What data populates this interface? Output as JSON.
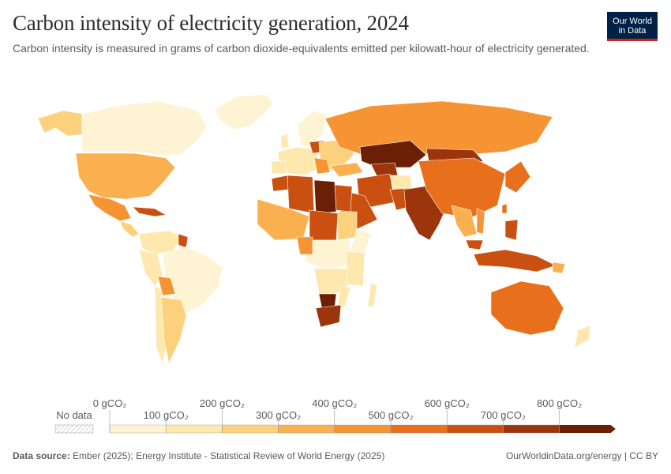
{
  "title": "Carbon intensity of electricity generation, 2024",
  "subtitle": "Carbon intensity is measured in grams of carbon dioxide-equivalents emitted per kilowatt-hour of electricity generated.",
  "logo": {
    "line1": "Our World",
    "line2": "in Data"
  },
  "legend": {
    "no_data_label": "No data",
    "top_ticks": [
      "0 gCO₂",
      "200 gCO₂",
      "400 gCO₂",
      "600 gCO₂",
      "800 gCO₂"
    ],
    "bottom_ticks": [
      "100 gCO₂",
      "300 gCO₂",
      "500 gCO₂",
      "700 gCO₂"
    ],
    "bins": [
      {
        "from": 0,
        "to": 100,
        "color": "#fef3d3"
      },
      {
        "from": 100,
        "to": 200,
        "color": "#fee8ad"
      },
      {
        "from": 200,
        "to": 300,
        "color": "#fcd17e"
      },
      {
        "from": 300,
        "to": 400,
        "color": "#fbb04f"
      },
      {
        "from": 400,
        "to": 500,
        "color": "#f69333"
      },
      {
        "from": 500,
        "to": 600,
        "color": "#e8701d"
      },
      {
        "from": 600,
        "to": 700,
        "color": "#ca5012"
      },
      {
        "from": 700,
        "to": 800,
        "color": "#9c350b"
      },
      {
        "from": 800,
        "to": 900,
        "color": "#6b1f05"
      }
    ]
  },
  "footer": {
    "source_label": "Data source:",
    "source_text": "Ember (2025); Energy Institute - Statistical Review of World Energy (2025)",
    "credit": "OurWorldinData.org/energy | CC BY"
  }
}
